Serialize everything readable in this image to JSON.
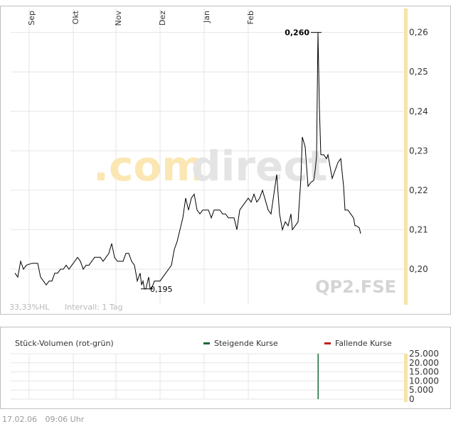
{
  "watermark": {
    "part1": ".com",
    "part2": "direct"
  },
  "symbol": "QP2.FSE",
  "info": {
    "range": "33,33%HL",
    "interval": "Intervall: 1 Tag"
  },
  "timestamp": {
    "date": "17.02.06",
    "time": "09:06 Uhr"
  },
  "colors": {
    "line": "#000000",
    "grid": "#e6e6e6",
    "accent": "#f7e3a5",
    "up": "#1a6b3a",
    "down": "#c81e1e"
  },
  "chart_data": [
    {
      "type": "line",
      "months": [
        "Sep",
        "Okt",
        "Nov",
        "Dez",
        "Jan",
        "Feb"
      ],
      "month_days": [
        10,
        41,
        71,
        102,
        133,
        164
      ],
      "yticks": [
        "0,26",
        "0,25",
        "0,24",
        "0,23",
        "0,22",
        "0,21",
        "0,20"
      ],
      "ylim": [
        0.191,
        0.263
      ],
      "annotations": {
        "high": "0,260",
        "low": "0,195"
      },
      "points": [
        [
          0,
          0.199
        ],
        [
          2,
          0.198
        ],
        [
          4,
          0.202
        ],
        [
          6,
          0.2
        ],
        [
          8,
          0.201
        ],
        [
          12,
          0.2015
        ],
        [
          16,
          0.2015
        ],
        [
          18,
          0.198
        ],
        [
          20,
          0.197
        ],
        [
          22,
          0.196
        ],
        [
          24,
          0.197
        ],
        [
          26,
          0.197
        ],
        [
          28,
          0.199
        ],
        [
          30,
          0.199
        ],
        [
          32,
          0.2
        ],
        [
          34,
          0.2
        ],
        [
          36,
          0.201
        ],
        [
          38,
          0.2
        ],
        [
          40,
          0.201
        ],
        [
          42,
          0.202
        ],
        [
          44,
          0.203
        ],
        [
          46,
          0.202
        ],
        [
          48,
          0.2
        ],
        [
          50,
          0.201
        ],
        [
          52,
          0.201
        ],
        [
          54,
          0.202
        ],
        [
          56,
          0.203
        ],
        [
          58,
          0.203
        ],
        [
          60,
          0.203
        ],
        [
          62,
          0.202
        ],
        [
          64,
          0.203
        ],
        [
          66,
          0.204
        ],
        [
          68,
          0.2065
        ],
        [
          70,
          0.203
        ],
        [
          72,
          0.202
        ],
        [
          74,
          0.202
        ],
        [
          76,
          0.202
        ],
        [
          78,
          0.204
        ],
        [
          80,
          0.204
        ],
        [
          82,
          0.202
        ],
        [
          84,
          0.201
        ],
        [
          86,
          0.197
        ],
        [
          88,
          0.199
        ],
        [
          89,
          0.196
        ],
        [
          90,
          0.197
        ],
        [
          91,
          0.195
        ],
        [
          92,
          0.195
        ],
        [
          94,
          0.198
        ],
        [
          95,
          0.195
        ],
        [
          96,
          0.195
        ],
        [
          98,
          0.197
        ],
        [
          100,
          0.197
        ],
        [
          102,
          0.197
        ],
        [
          104,
          0.198
        ],
        [
          106,
          0.199
        ],
        [
          108,
          0.2
        ],
        [
          110,
          0.201
        ],
        [
          112,
          0.205
        ],
        [
          114,
          0.207
        ],
        [
          116,
          0.21
        ],
        [
          118,
          0.213
        ],
        [
          120,
          0.218
        ],
        [
          122,
          0.215
        ],
        [
          124,
          0.218
        ],
        [
          126,
          0.219
        ],
        [
          128,
          0.215
        ],
        [
          130,
          0.214
        ],
        [
          132,
          0.215
        ],
        [
          134,
          0.215
        ],
        [
          136,
          0.215
        ],
        [
          138,
          0.213
        ],
        [
          140,
          0.215
        ],
        [
          142,
          0.215
        ],
        [
          144,
          0.215
        ],
        [
          146,
          0.214
        ],
        [
          148,
          0.214
        ],
        [
          150,
          0.213
        ],
        [
          152,
          0.213
        ],
        [
          154,
          0.213
        ],
        [
          156,
          0.21
        ],
        [
          158,
          0.215
        ],
        [
          160,
          0.216
        ],
        [
          162,
          0.217
        ],
        [
          164,
          0.218
        ],
        [
          166,
          0.217
        ],
        [
          168,
          0.219
        ],
        [
          170,
          0.217
        ],
        [
          172,
          0.218
        ],
        [
          174,
          0.22
        ],
        [
          176,
          0.2175
        ],
        [
          178,
          0.215
        ],
        [
          180,
          0.214
        ],
        [
          182,
          0.219
        ],
        [
          184,
          0.224
        ],
        [
          186,
          0.214
        ],
        [
          188,
          0.21
        ],
        [
          190,
          0.212
        ],
        [
          192,
          0.211
        ],
        [
          194,
          0.214
        ],
        [
          195,
          0.21
        ],
        [
          197,
          0.211
        ],
        [
          199,
          0.212
        ],
        [
          201,
          0.223
        ],
        [
          202,
          0.2335
        ],
        [
          204,
          0.231
        ],
        [
          206,
          0.221
        ],
        [
          208,
          0.222
        ],
        [
          210,
          0.2225
        ],
        [
          211,
          0.225
        ],
        [
          212,
          0.2285
        ],
        [
          213,
          0.26
        ],
        [
          214,
          0.241
        ],
        [
          215,
          0.229
        ],
        [
          217,
          0.229
        ],
        [
          219,
          0.228
        ],
        [
          220,
          0.229
        ],
        [
          221,
          0.227
        ],
        [
          223,
          0.223
        ],
        [
          225,
          0.225
        ],
        [
          227,
          0.227
        ],
        [
          229,
          0.228
        ],
        [
          231,
          0.221
        ],
        [
          232,
          0.215
        ],
        [
          234,
          0.215
        ],
        [
          236,
          0.214
        ],
        [
          238,
          0.213
        ],
        [
          239,
          0.211
        ],
        [
          240,
          0.211
        ],
        [
          242,
          0.2105
        ],
        [
          243,
          0.209
        ]
      ]
    },
    {
      "type": "bar",
      "title": "Stück-Volumen (rot-grün)",
      "legend": [
        {
          "name": "Steigende Kurse",
          "color": "#1a6b3a"
        },
        {
          "name": "Fallende Kurse",
          "color": "#c81e1e"
        }
      ],
      "yticks": [
        "25.000",
        "20.000",
        "15.000",
        "10.000",
        "5.000",
        "0"
      ],
      "ylim": [
        0,
        25000
      ],
      "bars": [
        {
          "x": 213,
          "value": 25000,
          "direction": "up"
        }
      ]
    }
  ]
}
